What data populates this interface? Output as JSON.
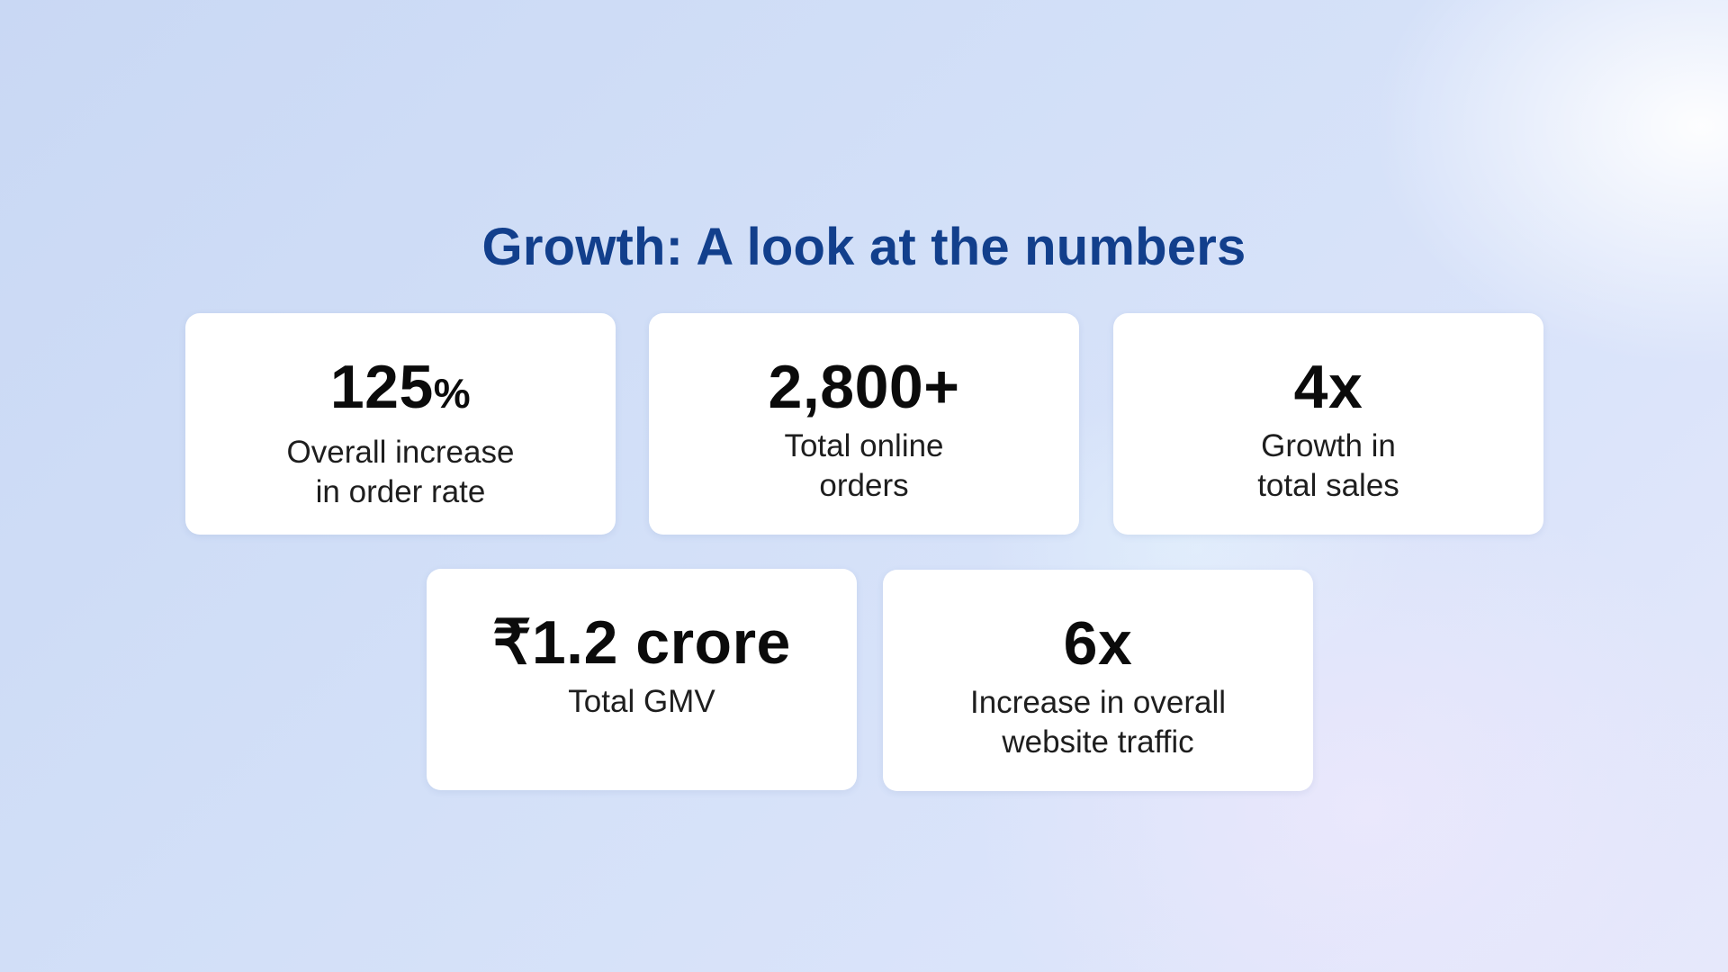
{
  "title": {
    "bold": "Growth:",
    "rest": " A look at the numbers"
  },
  "stats": [
    {
      "value": "125",
      "suffix": "%",
      "label": "Overall increase\nin order rate"
    },
    {
      "value": "2,800+",
      "suffix": "",
      "label": "Total online\norders"
    },
    {
      "value": "4x",
      "suffix": "",
      "label": "Growth in\ntotal sales"
    },
    {
      "value": "₹1.2 crore",
      "suffix": "",
      "label": "Total GMV"
    },
    {
      "value": "6x",
      "suffix": "",
      "label": "Increase in overall\nwebsite traffic"
    }
  ],
  "colors": {
    "title": "#123f8c",
    "card_background": "#ffffff",
    "value_text": "#0b0b0b"
  }
}
